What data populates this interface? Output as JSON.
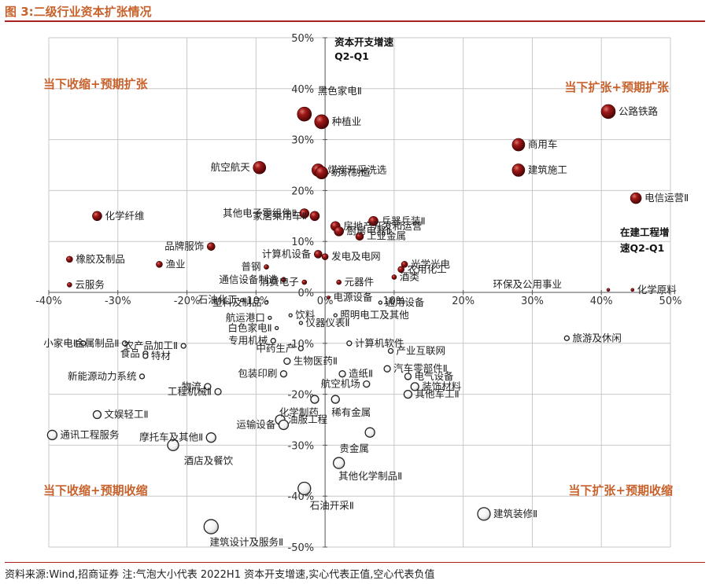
{
  "figure_title": "图 3:二级行业资本扩张情况",
  "source_note": "资料来源:Wind,招商证券 注:气泡大小代表 2022H1 资本开支增速,实心代表正值,空心代表负值",
  "colors": {
    "title": "#c8622c",
    "rule": "#a82020",
    "positive_bubble": "#7a0c0c",
    "negative_bubble": "#ffffff",
    "grid": "#c8c8c8"
  },
  "chart_data": {
    "type": "scatter",
    "title": "",
    "xlabel": "在建工程增速Q2-Q1",
    "ylabel": "资本开支增速Q2-Q1",
    "xlim": [
      -40,
      50
    ],
    "ylim": [
      -50,
      50
    ],
    "x_ticks": [
      "-40%",
      "-30%",
      "-20%",
      "-10%",
      "0%",
      "10%",
      "20%",
      "30%",
      "40%",
      "50%"
    ],
    "y_ticks": [
      "50%",
      "40%",
      "30%",
      "20%",
      "10%",
      "0%",
      "-10%",
      "-20%",
      "-30%",
      "-40%",
      "-50%"
    ],
    "grid": true,
    "quadrants": {
      "top_left": "当下收缩+预期扩张",
      "top_right": "当下扩张+预期扩张",
      "bottom_left": "当下收缩+预期收缩",
      "bottom_right": "当下扩张+预期收缩"
    },
    "points": [
      {
        "label": "黑色家电Ⅱ",
        "x": -3,
        "y": 35,
        "size": 9,
        "positive": true
      },
      {
        "label": "种植业",
        "x": -0.5,
        "y": 33.5,
        "size": 9,
        "positive": true
      },
      {
        "label": "公路铁路",
        "x": 41,
        "y": 35.5,
        "size": 9,
        "positive": true
      },
      {
        "label": "商用车",
        "x": 28,
        "y": 29,
        "size": 8,
        "positive": true
      },
      {
        "label": "建筑施工",
        "x": 28,
        "y": 24,
        "size": 8,
        "positive": true
      },
      {
        "label": "航空航天",
        "x": -9.5,
        "y": 24.5,
        "size": 8,
        "positive": true
      },
      {
        "label": "煤炭开采洗选",
        "x": -1,
        "y": 24,
        "size": 8,
        "positive": true
      },
      {
        "label": "纺织制造",
        "x": -0.5,
        "y": 23.5,
        "size": 8,
        "positive": true
      },
      {
        "label": "电信运营Ⅱ",
        "x": 45,
        "y": 18.5,
        "size": 7,
        "positive": true
      },
      {
        "label": "化学纤维",
        "x": -33,
        "y": 15,
        "size": 6,
        "positive": true
      },
      {
        "label": "其他电子零组件Ⅱ",
        "x": -3,
        "y": 15.5,
        "size": 6,
        "positive": true
      },
      {
        "label": "家居乘用车Ⅱ",
        "x": -1.5,
        "y": 15,
        "size": 6,
        "positive": true
      },
      {
        "label": "房地产开发和运营",
        "x": 1.5,
        "y": 13,
        "size": 6,
        "positive": true
      },
      {
        "label": "厨房电器Ⅱ",
        "x": 2,
        "y": 12,
        "size": 6,
        "positive": true
      },
      {
        "label": "兵器兵装Ⅱ",
        "x": 7,
        "y": 14,
        "size": 6,
        "positive": true
      },
      {
        "label": "工业金属",
        "x": 5,
        "y": 11,
        "size": 5,
        "positive": true
      },
      {
        "label": "品牌服饰",
        "x": -16.5,
        "y": 9,
        "size": 5,
        "positive": true
      },
      {
        "label": "计算机设备",
        "x": -1,
        "y": 7.5,
        "size": 5,
        "positive": true
      },
      {
        "label": "发电及电网",
        "x": 0,
        "y": 7,
        "size": 4,
        "positive": true
      },
      {
        "label": "光学光电",
        "x": 11.5,
        "y": 5.5,
        "size": 4,
        "positive": true
      },
      {
        "label": "橡胶及制品",
        "x": -37,
        "y": 6.5,
        "size": 4,
        "positive": true
      },
      {
        "label": "渔业",
        "x": -24,
        "y": 5.5,
        "size": 4,
        "positive": true
      },
      {
        "label": "农用化工",
        "x": 11,
        "y": 4.5,
        "size": 4,
        "positive": true
      },
      {
        "label": "普钢",
        "x": -8.5,
        "y": 5,
        "size": 3,
        "positive": true
      },
      {
        "label": "酒类",
        "x": 10,
        "y": 3,
        "size": 3,
        "positive": true
      },
      {
        "label": "通信设备制造",
        "x": -6,
        "y": 2.5,
        "size": 3,
        "positive": true
      },
      {
        "label": "消费电子",
        "x": -3,
        "y": 2,
        "size": 3,
        "positive": true
      },
      {
        "label": "元器件",
        "x": 2,
        "y": 2,
        "size": 3,
        "positive": true
      },
      {
        "label": "云服务",
        "x": -37,
        "y": 1.5,
        "size": 3,
        "positive": true
      },
      {
        "label": "环保及公用事业",
        "x": 41,
        "y": 0.5,
        "size": 2,
        "positive": true
      },
      {
        "label": "化学原料",
        "x": 44.5,
        "y": 0.5,
        "size": 2,
        "positive": true
      },
      {
        "label": "电源设备",
        "x": 0.5,
        "y": -1,
        "size": 2,
        "positive": true
      },
      {
        "label": "石油化工",
        "x": -12,
        "y": -1.5,
        "size": 2,
        "positive": false
      },
      {
        "label": "塑料及制品",
        "x": -8.5,
        "y": -2,
        "size": 2,
        "positive": false
      },
      {
        "label": "通用设备",
        "x": 8,
        "y": -2,
        "size": 2,
        "positive": false
      },
      {
        "label": "航运港口",
        "x": -8,
        "y": -5,
        "size": 2,
        "positive": false
      },
      {
        "label": "饮料",
        "x": -5,
        "y": -4.5,
        "size": 2,
        "positive": false
      },
      {
        "label": "照明电工及其他",
        "x": 1.5,
        "y": -4.5,
        "size": 2,
        "positive": false
      },
      {
        "label": "白色家电Ⅱ",
        "x": -7,
        "y": -7,
        "size": 2,
        "positive": false
      },
      {
        "label": "仪器仪表Ⅱ",
        "x": -3.5,
        "y": -6,
        "size": 2,
        "positive": false
      },
      {
        "label": "专用机械",
        "x": -7.5,
        "y": -9.5,
        "size": 3,
        "positive": false
      },
      {
        "label": "金属制品Ⅱ",
        "x": -29,
        "y": -10,
        "size": 3,
        "positive": false
      },
      {
        "label": "小家电Ⅱ",
        "x": -35,
        "y": -10,
        "size": 3,
        "positive": false
      },
      {
        "label": "农产品加工Ⅱ",
        "x": -20.5,
        "y": -10.5,
        "size": 3,
        "positive": false
      },
      {
        "label": "计算机软件",
        "x": 3.5,
        "y": -10,
        "size": 3,
        "positive": false
      },
      {
        "label": "旅游及休闲",
        "x": 35,
        "y": -9,
        "size": 3,
        "positive": false
      },
      {
        "label": "中药生产",
        "x": -3.5,
        "y": -11,
        "size": 3,
        "positive": false
      },
      {
        "label": "产业互联网",
        "x": 9.5,
        "y": -11.5,
        "size": 3,
        "positive": false
      },
      {
        "label": "食品",
        "x": -26,
        "y": -12,
        "size": 3,
        "positive": false
      },
      {
        "label": "特材",
        "x": -26,
        "y": -12.5,
        "size": 3,
        "positive": false
      },
      {
        "label": "生物医药Ⅱ",
        "x": -5.5,
        "y": -13.5,
        "size": 4,
        "positive": false
      },
      {
        "label": "汽车零部件Ⅱ",
        "x": 9,
        "y": -15,
        "size": 4,
        "positive": false
      },
      {
        "label": "造纸Ⅱ",
        "x": 2.5,
        "y": -16,
        "size": 4,
        "positive": false
      },
      {
        "label": "电气设备",
        "x": 12,
        "y": -16.5,
        "size": 4,
        "positive": false
      },
      {
        "label": "新能源动力系统",
        "x": -26.5,
        "y": -16.5,
        "size": 3,
        "positive": false
      },
      {
        "label": "包装印刷",
        "x": -6,
        "y": -16,
        "size": 4,
        "positive": false
      },
      {
        "label": "航空机场",
        "x": 6,
        "y": -18,
        "size": 4,
        "positive": false
      },
      {
        "label": "物流",
        "x": -17,
        "y": -18.5,
        "size": 4,
        "positive": false
      },
      {
        "label": "工程机械Ⅱ",
        "x": -15.5,
        "y": -19.5,
        "size": 4,
        "positive": false
      },
      {
        "label": "装饰材料",
        "x": 13,
        "y": -18.5,
        "size": 5,
        "positive": false
      },
      {
        "label": "化学制药",
        "x": -1.5,
        "y": -21,
        "size": 5,
        "positive": false
      },
      {
        "label": "稀有金属",
        "x": 1.5,
        "y": -21,
        "size": 5,
        "positive": false
      },
      {
        "label": "其他军工Ⅱ",
        "x": 12,
        "y": -20,
        "size": 5,
        "positive": false
      },
      {
        "label": "文娱轻工Ⅱ",
        "x": -33,
        "y": -24,
        "size": 5,
        "positive": false
      },
      {
        "label": "油服工程",
        "x": -6.5,
        "y": -25,
        "size": 6,
        "positive": false
      },
      {
        "label": "运输设备",
        "x": -6,
        "y": -26,
        "size": 6,
        "positive": false
      },
      {
        "label": "贵金属",
        "x": 6.5,
        "y": -27.5,
        "size": 6,
        "positive": false
      },
      {
        "label": "通讯工程服务",
        "x": -39.5,
        "y": -28,
        "size": 6,
        "positive": false
      },
      {
        "label": "摩托车及其他Ⅱ",
        "x": -16.5,
        "y": -28.5,
        "size": 6,
        "positive": false
      },
      {
        "label": "酒店及餐饮",
        "x": -22,
        "y": -30,
        "size": 7,
        "positive": false
      },
      {
        "label": "其他化学制品Ⅱ",
        "x": 2,
        "y": -33.5,
        "size": 7,
        "positive": false
      },
      {
        "label": "石油开采Ⅱ",
        "x": -3,
        "y": -38.5,
        "size": 8,
        "positive": false
      },
      {
        "label": "建筑装修Ⅱ",
        "x": 23,
        "y": -43.5,
        "size": 8,
        "positive": false
      },
      {
        "label": "建筑设计及服务Ⅱ",
        "x": -16.5,
        "y": -46,
        "size": 9,
        "positive": false
      }
    ]
  }
}
